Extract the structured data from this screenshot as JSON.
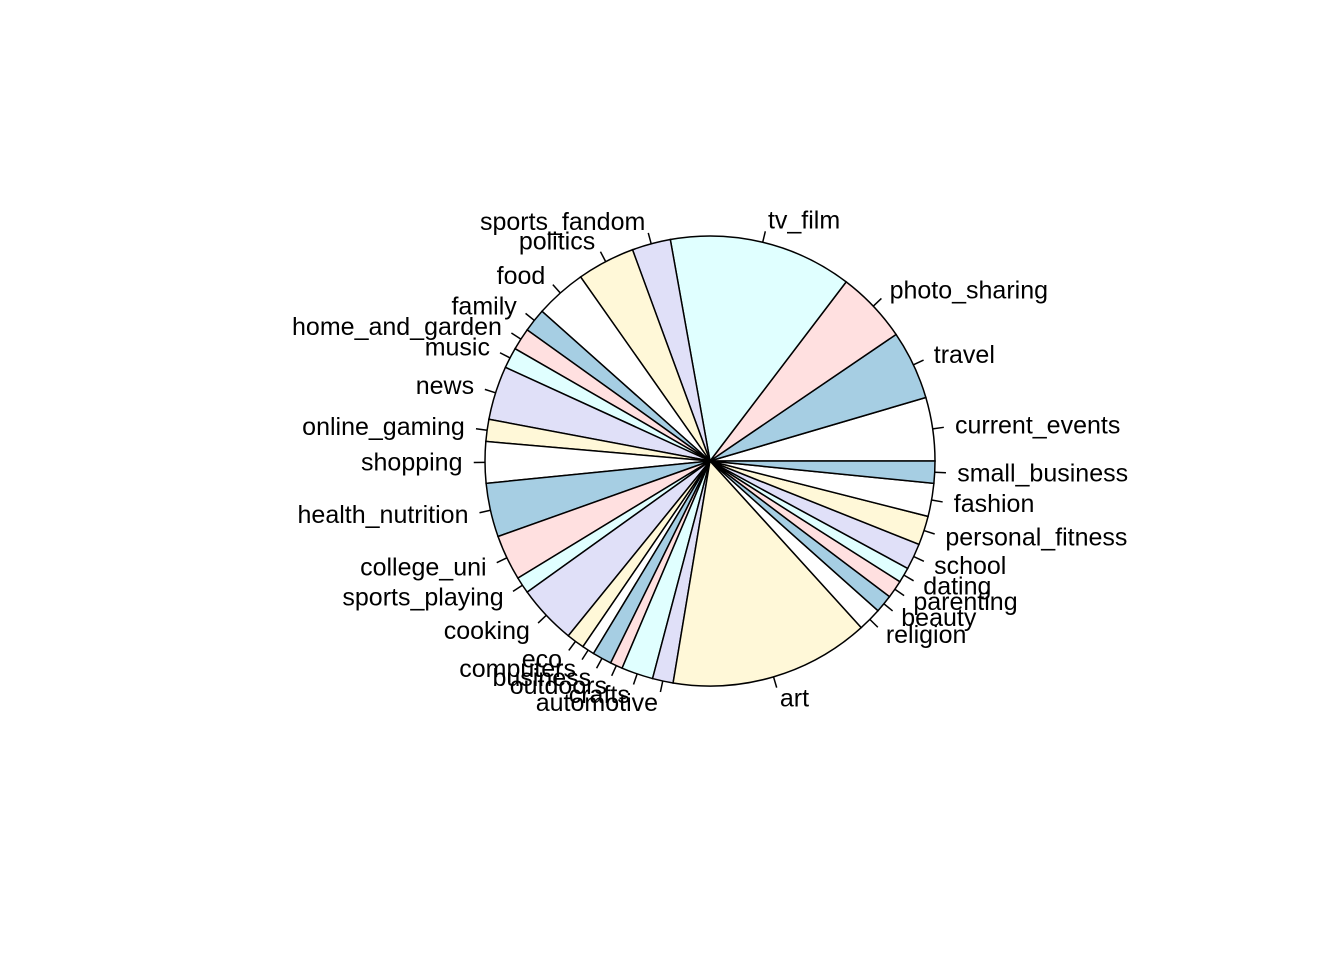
{
  "chart_data": {
    "type": "pie",
    "start": "counterclockwise-from-3-oclock",
    "palette": [
      "#A6CEE3",
      "#FFFFFF",
      "#FFE0E0",
      "#E0FFFF",
      "#E0E0F8",
      "#FFF8D8"
    ],
    "slices": [
      {
        "label": "current_events",
        "value": 4.6,
        "color": "#FFFFFF"
      },
      {
        "label": "travel",
        "value": 5.0,
        "color": "#A6CEE3"
      },
      {
        "label": "photo_sharing",
        "value": 5.2,
        "color": "#FFE0E0"
      },
      {
        "label": "tv_film",
        "value": 13.3,
        "color": "#E0FFFF"
      },
      {
        "label": "sports_fandom",
        "value": 2.8,
        "color": "#E0E0F8"
      },
      {
        "label": "politics",
        "value": 4.2,
        "color": "#FFF8D8"
      },
      {
        "label": "food",
        "value": 3.7,
        "color": "#FFFFFF"
      },
      {
        "label": "family",
        "value": 1.7,
        "color": "#A6CEE3"
      },
      {
        "label": "home_and_garden",
        "value": 1.6,
        "color": "#FFE0E0"
      },
      {
        "label": "music",
        "value": 1.5,
        "color": "#E0FFFF"
      },
      {
        "label": "news",
        "value": 3.9,
        "color": "#E0E0F8"
      },
      {
        "label": "online_gaming",
        "value": 1.6,
        "color": "#FFF8D8"
      },
      {
        "label": "shopping",
        "value": 3.0,
        "color": "#FFFFFF"
      },
      {
        "label": "health_nutrition",
        "value": 3.9,
        "color": "#A6CEE3"
      },
      {
        "label": "college_uni",
        "value": 3.3,
        "color": "#FFE0E0"
      },
      {
        "label": "sports_playing",
        "value": 1.2,
        "color": "#E0FFFF"
      },
      {
        "label": "cooking",
        "value": 4.3,
        "color": "#E0E0F8"
      },
      {
        "label": "eco",
        "value": 1.3,
        "color": "#FFF8D8"
      },
      {
        "label": "computers",
        "value": 0.9,
        "color": "#FFFFFF"
      },
      {
        "label": "business",
        "value": 1.4,
        "color": "#A6CEE3"
      },
      {
        "label": "outdoors",
        "value": 0.9,
        "color": "#FFE0E0"
      },
      {
        "label": "crafts",
        "value": 2.3,
        "color": "#E0FFFF"
      },
      {
        "label": "automotive",
        "value": 1.5,
        "color": "#E0E0F8"
      },
      {
        "label": "art",
        "value": 14.5,
        "color": "#FFF8D8"
      },
      {
        "label": "religion",
        "value": 1.7,
        "color": "#FFFFFF"
      },
      {
        "label": "beauty",
        "value": 1.3,
        "color": "#A6CEE3"
      },
      {
        "label": "parenting",
        "value": 1.3,
        "color": "#FFE0E0"
      },
      {
        "label": "dating",
        "value": 1.1,
        "color": "#E0FFFF"
      },
      {
        "label": "school",
        "value": 1.9,
        "color": "#E0E0F8"
      },
      {
        "label": "personal_fitness",
        "value": 2.1,
        "color": "#FFF8D8"
      },
      {
        "label": "fashion",
        "value": 2.4,
        "color": "#FFFFFF"
      },
      {
        "label": "small_business",
        "value": 1.6,
        "color": "#A6CEE3"
      }
    ]
  }
}
